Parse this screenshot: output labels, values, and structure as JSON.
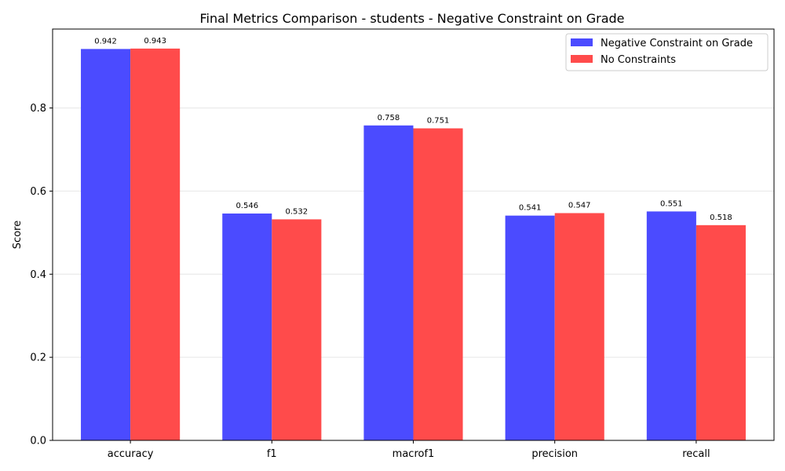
{
  "chart_data": {
    "type": "bar",
    "title": "Final Metrics Comparison - students - Negative Constraint on Grade",
    "xlabel": "",
    "ylabel": "Score",
    "categories": [
      "accuracy",
      "f1",
      "macrof1",
      "precision",
      "recall"
    ],
    "series": [
      {
        "name": "Negative Constraint on Grade",
        "values": [
          0.942,
          0.546,
          0.758,
          0.541,
          0.551
        ],
        "color": "#4b4bff"
      },
      {
        "name": "No Constraints",
        "values": [
          0.943,
          0.532,
          0.751,
          0.547,
          0.518
        ],
        "color": "#ff4b4b"
      }
    ],
    "ylim": [
      0,
      0.99
    ],
    "yticks": [
      "0.0",
      "0.2",
      "0.4",
      "0.6",
      "0.8"
    ],
    "grid": "horizontal",
    "legend_position": "top-right"
  }
}
